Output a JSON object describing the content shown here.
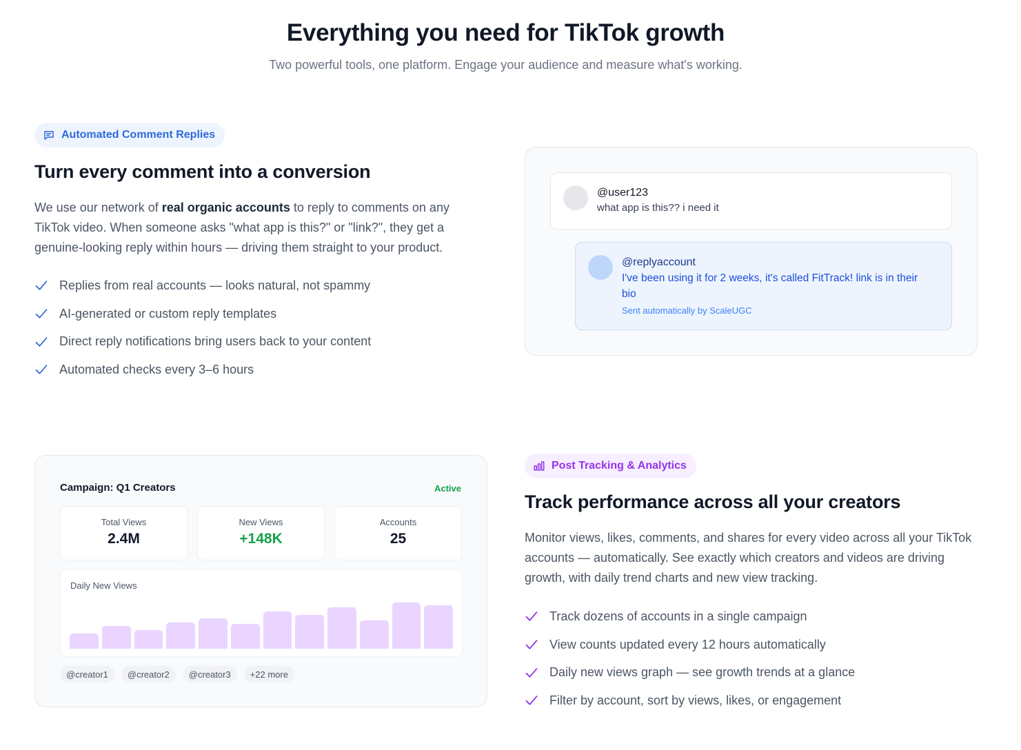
{
  "hero": {
    "title": "Everything you need for TikTok growth",
    "subtitle": "Two powerful tools, one platform. Engage your audience and measure what's working."
  },
  "comments_feature": {
    "badge": "Automated Comment Replies",
    "badge_icon": "message-icon",
    "title": "Turn every comment into a conversion",
    "desc_pre": "We use our network of ",
    "desc_bold": "real organic accounts",
    "desc_post": " to reply to comments on any TikTok video. When someone asks \"what app is this?\" or \"link?\", they get a genuine-looking reply within hours — driving them straight to your product.",
    "checklist": [
      "Replies from real accounts — looks natural, not spammy",
      "AI-generated or custom reply templates",
      "Direct reply notifications bring users back to your content",
      "Automated checks every 3–6 hours"
    ],
    "check_color": "#3b6fd6",
    "demo": {
      "comment_user": "@user123",
      "comment_text": "what app is this?? i need it",
      "reply_user": "@replyaccount",
      "reply_text": "I've been using it for 2 weeks, it's called FitTrack! link is in their bio",
      "reply_note": "Sent automatically by ScaleUGC"
    }
  },
  "analytics_feature": {
    "badge": "Post Tracking & Analytics",
    "badge_icon": "bar-chart-icon",
    "title": "Track performance across all your creators",
    "desc": "Monitor views, likes, comments, and shares for every video across all your TikTok accounts — automatically. See exactly which creators and videos are driving growth, with daily trend charts and new view tracking.",
    "checklist": [
      "Track dozens of accounts in a single campaign",
      "View counts updated every 12 hours automatically",
      "Daily new views graph — see growth trends at a glance",
      "Filter by account, sort by views, likes, or engagement"
    ],
    "check_color": "#9333ea",
    "demo": {
      "campaign": "Campaign: Q1 Creators",
      "status": "Active",
      "stats": [
        {
          "label": "Total Views",
          "value": "2.4M"
        },
        {
          "label": "New Views",
          "value": "+148K"
        },
        {
          "label": "Accounts",
          "value": "25"
        }
      ],
      "chart_label": "Daily New Views",
      "tags": [
        "@creator1",
        "@creator2",
        "@creator3",
        "+22 more"
      ]
    }
  },
  "chart_data": {
    "type": "bar",
    "title": "Daily New Views",
    "values": [
      3,
      4.5,
      3.7,
      5.2,
      5.9,
      4.8,
      7.3,
      6.6,
      8.1,
      5.5,
      9,
      8.5
    ],
    "ylim": [
      0,
      10
    ],
    "color": "#e9d5ff"
  }
}
